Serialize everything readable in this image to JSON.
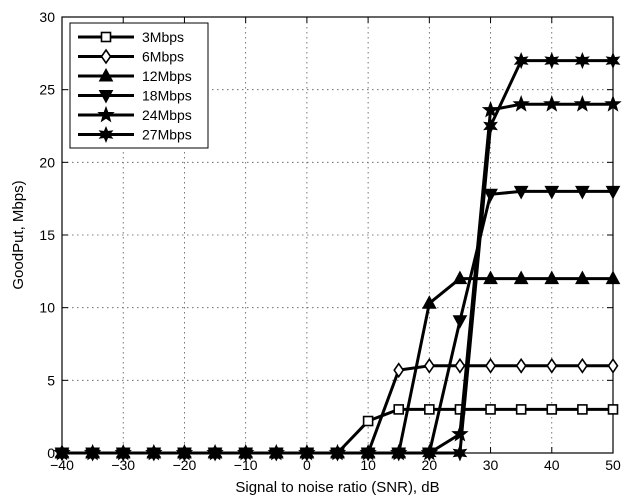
{
  "chart_data": {
    "type": "line",
    "title": "",
    "xlabel": "Signal to noise ratio (SNR), dB",
    "ylabel": "GoodPut, Mbps)",
    "xlim": [
      -40,
      50
    ],
    "ylim": [
      0,
      30
    ],
    "xticks": [
      -40,
      -30,
      -20,
      -10,
      0,
      10,
      20,
      30,
      40,
      50
    ],
    "yticks": [
      0,
      5,
      10,
      15,
      20,
      25,
      30
    ],
    "grid": true,
    "legend_position": "top-left",
    "line_color": "#000000",
    "x": [
      -40,
      -35,
      -30,
      -25,
      -20,
      -15,
      -10,
      -5,
      0,
      5,
      10,
      15,
      20,
      25,
      30,
      35,
      40,
      45,
      50
    ],
    "series": [
      {
        "name": "3Mbps",
        "marker": "square",
        "values": [
          0,
          0,
          0,
          0,
          0,
          0,
          0,
          0,
          0,
          0,
          2.2,
          3,
          3,
          3,
          3,
          3,
          3,
          3,
          3
        ]
      },
      {
        "name": "6Mbps",
        "marker": "diamond",
        "values": [
          0,
          0,
          0,
          0,
          0,
          0,
          0,
          0,
          0,
          0,
          0,
          5.7,
          6,
          6,
          6,
          6,
          6,
          6,
          6
        ]
      },
      {
        "name": "12Mbps",
        "marker": "triangle-up",
        "values": [
          0,
          0,
          0,
          0,
          0,
          0,
          0,
          0,
          0,
          0,
          0,
          0,
          10.3,
          12,
          12,
          12,
          12,
          12,
          12
        ]
      },
      {
        "name": "18Mbps",
        "marker": "triangle-down",
        "values": [
          0,
          0,
          0,
          0,
          0,
          0,
          0,
          0,
          0,
          0,
          0,
          0,
          0,
          9.1,
          17.8,
          18,
          18,
          18,
          18
        ]
      },
      {
        "name": "24Mbps",
        "marker": "star5",
        "values": [
          0,
          0,
          0,
          0,
          0,
          0,
          0,
          0,
          0,
          0,
          0,
          0,
          0,
          1.3,
          23.6,
          24,
          24,
          24,
          24
        ]
      },
      {
        "name": "27Mbps",
        "marker": "star6",
        "values": [
          0,
          0,
          0,
          0,
          0,
          0,
          0,
          0,
          0,
          0,
          0,
          0,
          0,
          0,
          22.5,
          27,
          27,
          27,
          27
        ]
      }
    ]
  }
}
